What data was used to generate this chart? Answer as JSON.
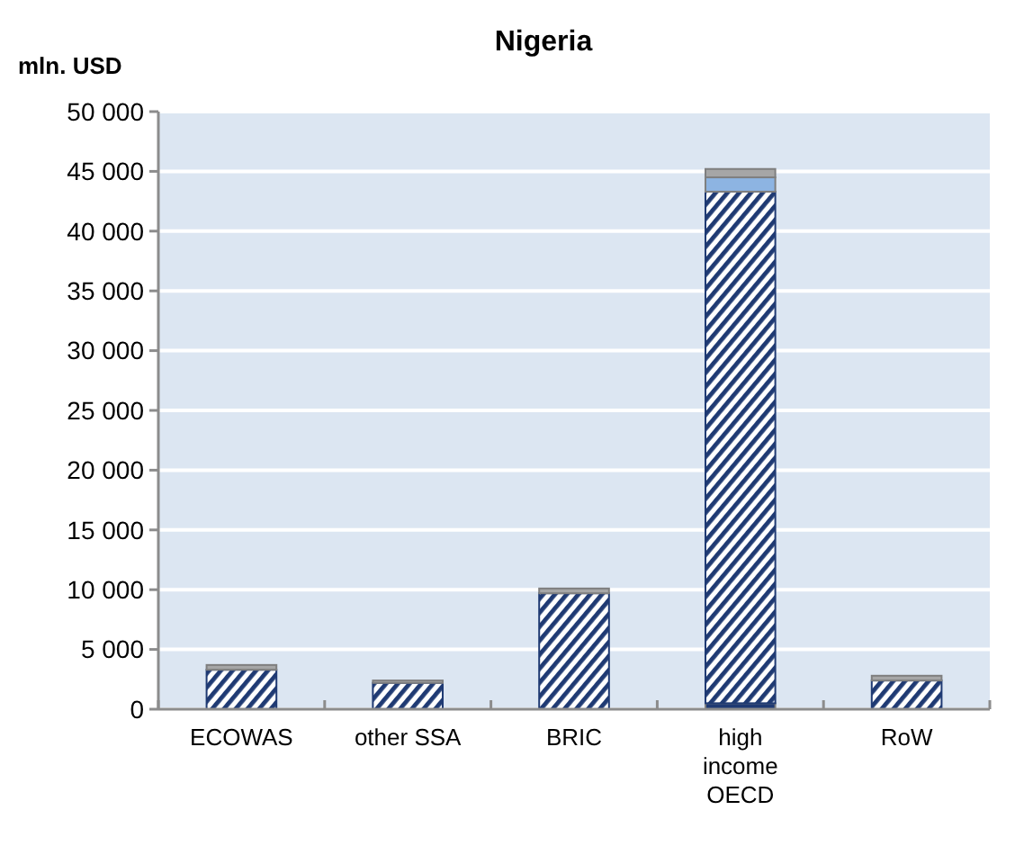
{
  "chart_data": {
    "type": "bar",
    "title": "Nigeria",
    "ylabel": "mln. USD",
    "stacked": true,
    "grid": "y",
    "categories": [
      "ECOWAS",
      "other SSA",
      "BRIC",
      "high income OECD",
      "RoW"
    ],
    "series": [
      {
        "color": "#1f3a73",
        "values": [
          0,
          0,
          0,
          500,
          0
        ]
      },
      {
        "color": "#1f3a73",
        "values": [
          3300,
          2200,
          9700,
          42800,
          2400
        ]
      },
      {
        "color": "#8db4e2",
        "values": [
          0,
          0,
          0,
          1200,
          0
        ]
      },
      {
        "color": "#a6a6a6",
        "values": [
          400,
          200,
          400,
          700,
          400
        ]
      }
    ],
    "ylim": [
      0,
      50000
    ],
    "yticks": [
      {
        "value": 0,
        "label": "0"
      },
      {
        "value": 5000,
        "label": "5 000"
      },
      {
        "value": 10000,
        "label": "10 000"
      },
      {
        "value": 15000,
        "label": "15 000"
      },
      {
        "value": 20000,
        "label": "20 000"
      },
      {
        "value": 25000,
        "label": "25 000"
      },
      {
        "value": 30000,
        "label": "30 000"
      },
      {
        "value": 35000,
        "label": "35 000"
      },
      {
        "value": 40000,
        "label": "40 000"
      },
      {
        "value": 45000,
        "label": "45 000"
      },
      {
        "value": 50000,
        "label": "50 000"
      }
    ]
  }
}
